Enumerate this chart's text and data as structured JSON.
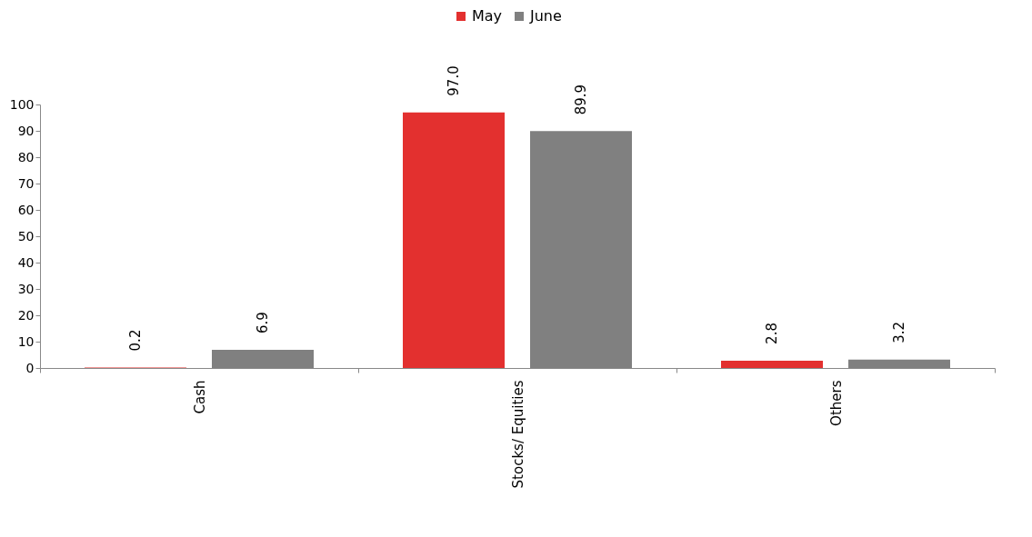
{
  "chart_data": {
    "type": "bar",
    "categories": [
      "Cash",
      "Stocks/ Equities",
      "Others"
    ],
    "series": [
      {
        "name": "May",
        "color": "#e3302f",
        "values": [
          0.2,
          97.0,
          2.8
        ],
        "value_labels": [
          "0.2",
          "97.0",
          "2.8"
        ]
      },
      {
        "name": "June",
        "color": "#808080",
        "values": [
          6.9,
          89.9,
          3.2
        ],
        "value_labels": [
          "6.9",
          "89.9",
          "3.2"
        ]
      }
    ],
    "ylim": [
      0,
      100
    ],
    "yticks": [
      0,
      10,
      20,
      30,
      40,
      50,
      60,
      70,
      80,
      90,
      100
    ],
    "grid": false,
    "legend": "top"
  }
}
